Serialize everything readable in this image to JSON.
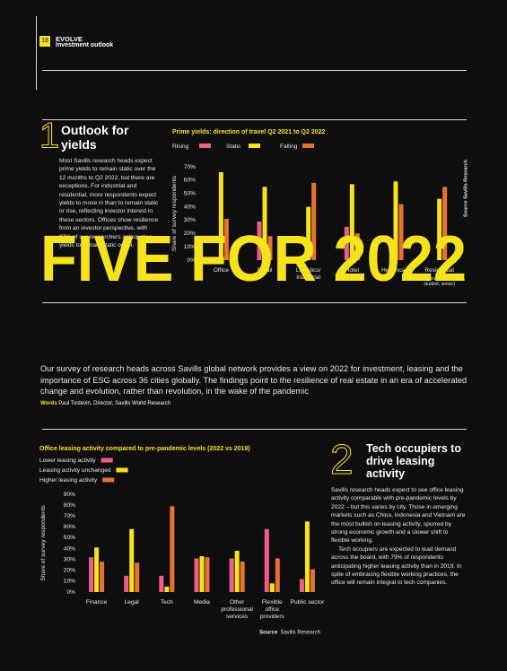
{
  "header": {
    "page_number": "18",
    "section": "EVOLVE",
    "subtitle": "Investment outlook"
  },
  "section1": {
    "number": "1",
    "title": "Outlook for yields",
    "body": "Most Savills research heads expect prime yields to remain static over the 12 months to Q2 2022, but there are exceptions. For industrial and residential, more respondents expect yields to move in than to remain static or rise, reflecting investor interest in these sectors. Offices show resilience from an investor perspective, with 97% of our researchers anticipating yields to remain static or fall."
  },
  "feature": {
    "title": "FIVE FOR 2022",
    "intro": "Our survey of research heads across Savills global network provides a view on 2022 for investment, leasing and the importance of ESG across 36 cities globally. The findings point to the resilience of real estate in an era of accelerated change and evolution, rather than revolution, in the wake of the pandemic",
    "credit_label": "Words",
    "credit": "Paul Tostevin, Director, Savills World Research"
  },
  "section2": {
    "number": "2",
    "title": "Tech occupiers to drive leasing activity",
    "body": [
      "Savills research heads expect to see office leasing activity comparable with pre-pandemic levels by 2022 – but this varies by city. Those in emerging markets such as China, Indonesia and Vietnam are the most bullish on leasing activity, spurred by strong economic growth and a slower shift to flexible working.",
      "Tech occupiers are expected to lead demand across the board, with 79% of respondents anticipating higher leasing activity than in 2019. In spite of embracing flexible working practices, the office will remain integral to tech companies."
    ]
  },
  "chart_data": [
    {
      "type": "bar",
      "title": "Prime yields: direction of travel Q2 2021 to Q2 2022",
      "y_label": "Share of survey respondents",
      "source": "Source Savills Research",
      "categories": [
        "Office",
        "Retail",
        "Logistics/ Industrial",
        "Hotel",
        "Healthcare",
        "Residential"
      ],
      "category_note": "(Institutional - multi-family, student, senior)",
      "series": [
        {
          "name": "Rising",
          "color": "#ec5f86",
          "values": [
            2,
            29,
            1,
            25,
            0,
            0
          ]
        },
        {
          "name": "Static",
          "color": "#f7e21b",
          "values": [
            66,
            55,
            40,
            57,
            59,
            46
          ]
        },
        {
          "name": "Falling",
          "color": "#e87330",
          "values": [
            31,
            18,
            58,
            20,
            42,
            55
          ]
        }
      ],
      "ylim": [
        0,
        70
      ],
      "yticks": [
        {
          "value": 0,
          "label": "0%"
        },
        {
          "value": 10,
          "label": "10%"
        },
        {
          "value": 20,
          "label": "20%"
        },
        {
          "value": 30,
          "label": "30%"
        },
        {
          "value": 40,
          "label": "40%"
        },
        {
          "value": 50,
          "label": "50%"
        },
        {
          "value": 60,
          "label": "60%"
        },
        {
          "value": 70,
          "label": "70%"
        }
      ],
      "legend": "top",
      "grid": false
    },
    {
      "type": "bar",
      "title": "Office leasing activity compared to pre-pandemic levels (2022 vs 2019)",
      "y_label": "Share of survey respondents",
      "source_label": "Source",
      "source_text": "Savills Research",
      "categories": [
        "Finance",
        "Legal",
        "Tech",
        "Media",
        "Other professional services",
        "Flexible office providers",
        "Public sector"
      ],
      "series": [
        {
          "name": "Lower leasing activity",
          "color": "#ec5f86",
          "values": [
            32,
            15,
            15,
            31,
            31,
            58,
            12
          ]
        },
        {
          "name": "Leasing activity unchanged",
          "color": "#f7e21b",
          "values": [
            41,
            58,
            5,
            33,
            38,
            8,
            65
          ]
        },
        {
          "name": "Higher leasing activity",
          "color": "#e87330",
          "values": [
            28,
            27,
            79,
            32,
            28,
            31,
            21
          ]
        }
      ],
      "ylim": [
        0,
        90
      ],
      "yticks": [
        {
          "value": 0,
          "label": "0%"
        },
        {
          "value": 10,
          "label": "10%"
        },
        {
          "value": 20,
          "label": "20%"
        },
        {
          "value": 30,
          "label": "30%"
        },
        {
          "value": 40,
          "label": "40%"
        },
        {
          "value": 50,
          "label": "50%"
        },
        {
          "value": 60,
          "label": "60%"
        },
        {
          "value": 70,
          "label": "70%"
        },
        {
          "value": 80,
          "label": "80%"
        },
        {
          "value": 90,
          "label": "90%"
        }
      ],
      "legend": "top-left",
      "grid": false
    }
  ]
}
